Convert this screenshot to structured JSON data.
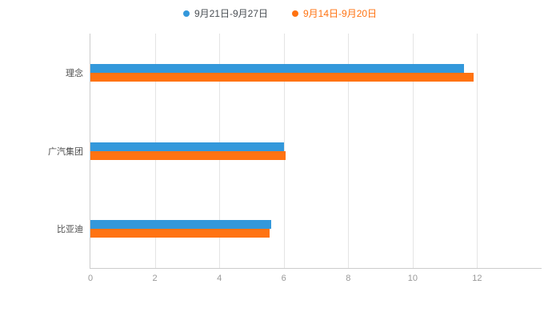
{
  "legend": {
    "items": [
      {
        "label": "9月21日-9月27日",
        "color": "#3398DB",
        "text_color": "#4a4f54"
      },
      {
        "label": "9月14日-9月20日",
        "color": "#FF7312",
        "text_color": "#FF7312"
      }
    ]
  },
  "chart_data": {
    "type": "bar",
    "orientation": "horizontal",
    "title": "",
    "xlabel": "",
    "ylabel": "",
    "categories": [
      "理念",
      "广汽集团",
      "比亚迪"
    ],
    "series": [
      {
        "name": "9月21日-9月27日",
        "color": "#3398DB",
        "values": [
          11.6,
          6.0,
          5.6
        ]
      },
      {
        "name": "9月14日-9月20日",
        "color": "#FF7312",
        "values": [
          11.9,
          6.05,
          5.55
        ]
      }
    ],
    "xlim": [
      0,
      14
    ],
    "xticks": [
      0,
      2,
      4,
      6,
      8,
      10,
      12
    ],
    "grid": true,
    "legend_position": "top"
  },
  "style_colors": {
    "axis_line": "#cccccc",
    "grid_line": "#e4e4e4",
    "tick_label": "#999999",
    "category_label": "#4d4d4d",
    "background": "#ffffff"
  }
}
